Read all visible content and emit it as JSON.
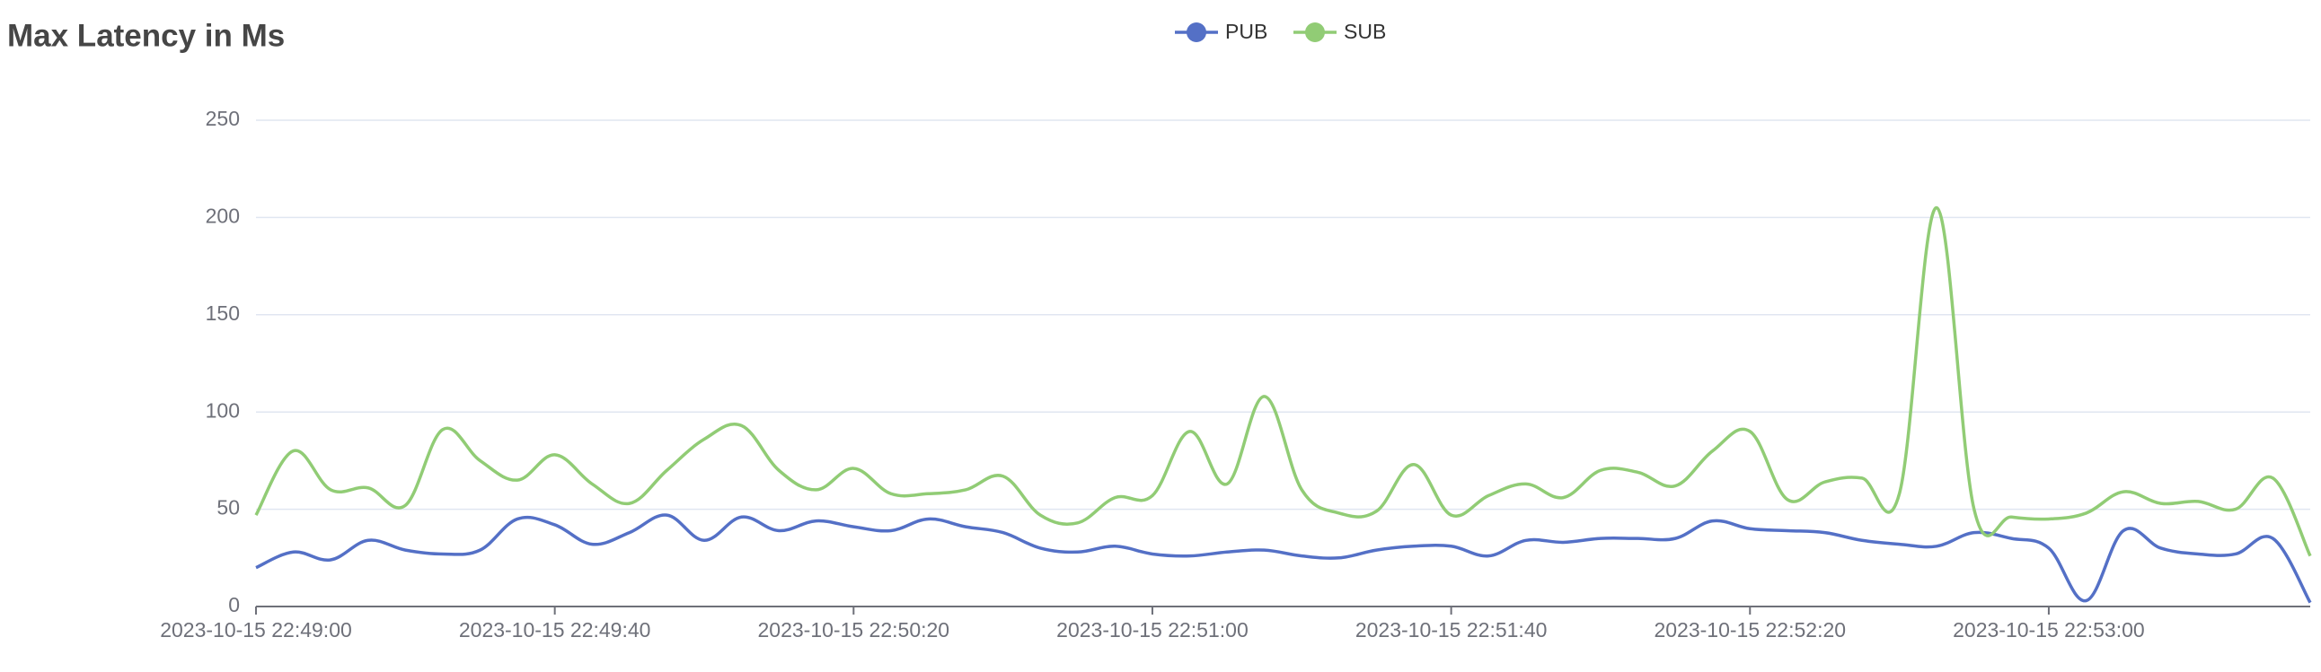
{
  "chart_data": {
    "type": "line",
    "title": "Max Latency in Ms",
    "legend": "top",
    "grid": true,
    "smooth": true,
    "ylim": [
      0,
      250
    ],
    "yticks": [
      0,
      50,
      100,
      150,
      200,
      250
    ],
    "xlim": [
      "2023-10-15 22:49:00",
      "2023-10-15 22:53:35"
    ],
    "xticks": [
      "2023-10-15 22:49:00",
      "2023-10-15 22:49:40",
      "2023-10-15 22:50:20",
      "2023-10-15 22:51:00",
      "2023-10-15 22:51:40",
      "2023-10-15 22:52:20",
      "2023-10-15 22:53:00"
    ],
    "x": [
      "2023-10-15 22:49:00",
      "2023-10-15 22:49:05",
      "2023-10-15 22:49:10",
      "2023-10-15 22:49:15",
      "2023-10-15 22:49:20",
      "2023-10-15 22:49:25",
      "2023-10-15 22:49:30",
      "2023-10-15 22:49:35",
      "2023-10-15 22:49:40",
      "2023-10-15 22:49:45",
      "2023-10-15 22:49:50",
      "2023-10-15 22:49:55",
      "2023-10-15 22:50:00",
      "2023-10-15 22:50:05",
      "2023-10-15 22:50:10",
      "2023-10-15 22:50:15",
      "2023-10-15 22:50:20",
      "2023-10-15 22:50:25",
      "2023-10-15 22:50:30",
      "2023-10-15 22:50:35",
      "2023-10-15 22:50:40",
      "2023-10-15 22:50:45",
      "2023-10-15 22:50:50",
      "2023-10-15 22:50:55",
      "2023-10-15 22:51:00",
      "2023-10-15 22:51:05",
      "2023-10-15 22:51:10",
      "2023-10-15 22:51:15",
      "2023-10-15 22:51:20",
      "2023-10-15 22:51:25",
      "2023-10-15 22:51:30",
      "2023-10-15 22:51:35",
      "2023-10-15 22:51:40",
      "2023-10-15 22:51:45",
      "2023-10-15 22:51:50",
      "2023-10-15 22:51:55",
      "2023-10-15 22:52:00",
      "2023-10-15 22:52:05",
      "2023-10-15 22:52:10",
      "2023-10-15 22:52:15",
      "2023-10-15 22:52:20",
      "2023-10-15 22:52:25",
      "2023-10-15 22:52:30",
      "2023-10-15 22:52:35",
      "2023-10-15 22:52:40",
      "2023-10-15 22:52:45",
      "2023-10-15 22:52:50",
      "2023-10-15 22:52:55",
      "2023-10-15 22:53:00",
      "2023-10-15 22:53:05",
      "2023-10-15 22:53:10",
      "2023-10-15 22:53:15",
      "2023-10-15 22:53:20",
      "2023-10-15 22:53:25",
      "2023-10-15 22:53:30",
      "2023-10-15 22:53:35"
    ],
    "series": [
      {
        "name": "PUB",
        "color": "#5470c6",
        "values": [
          20,
          28,
          24,
          34,
          29,
          27,
          29,
          45,
          42,
          32,
          38,
          47,
          34,
          46,
          39,
          44,
          41,
          39,
          45,
          41,
          38,
          30,
          28,
          31,
          27,
          26,
          28,
          29,
          26,
          25,
          29,
          31,
          31,
          26,
          34,
          33,
          35,
          35,
          35,
          44,
          40,
          39,
          38,
          34,
          32,
          31,
          38,
          35,
          30,
          3,
          39,
          30,
          27,
          27,
          35,
          2
        ]
      },
      {
        "name": "SUB",
        "color": "#91cc75",
        "values": [
          47,
          80,
          60,
          61,
          52,
          91,
          75,
          65,
          78,
          63,
          53,
          70,
          86,
          93,
          70,
          60,
          71,
          58,
          58,
          60,
          67,
          47,
          43,
          56,
          57,
          90,
          63,
          108,
          60,
          48,
          49,
          73,
          47,
          57,
          63,
          56,
          70,
          69,
          62,
          80,
          90,
          55,
          64,
          66,
          58,
          205,
          50,
          46,
          45,
          48,
          59,
          53,
          54,
          50,
          66,
          26
        ]
      }
    ]
  }
}
